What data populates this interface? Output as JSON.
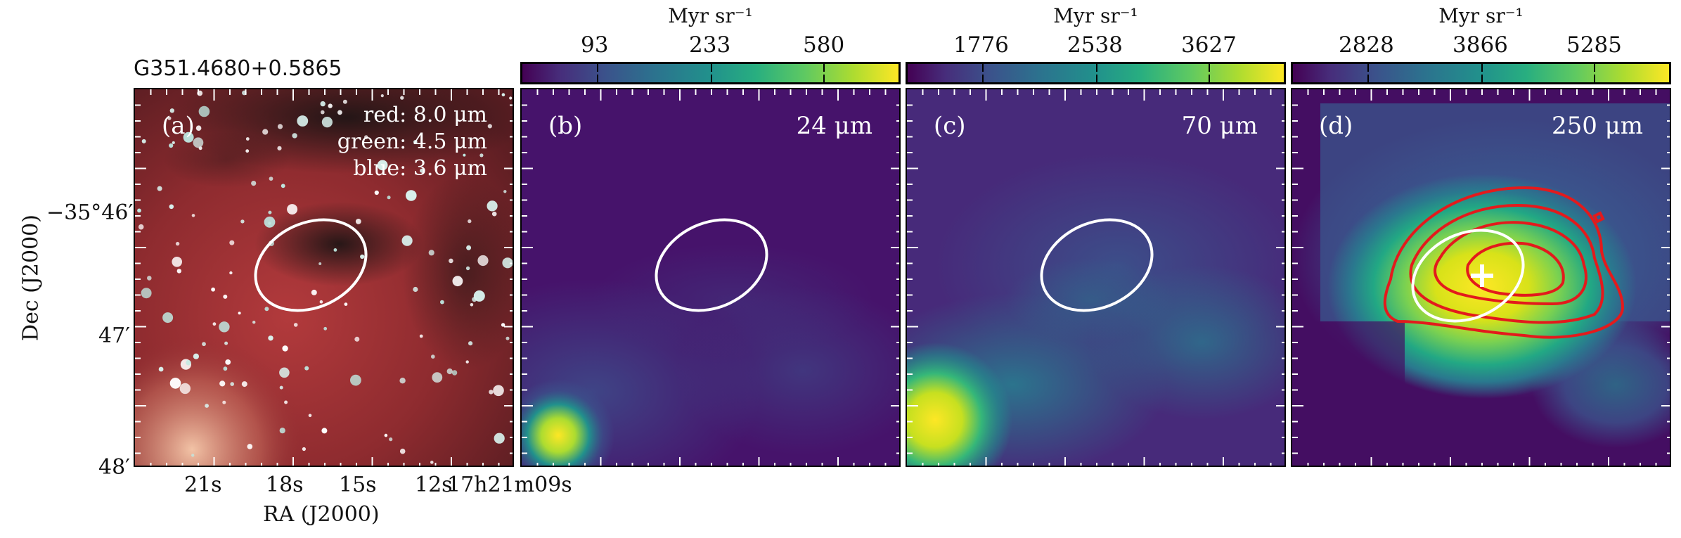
{
  "figure": {
    "source_name": "G351.4680+0.5865",
    "ra_axis_title": "RA (J2000)",
    "dec_axis_title": "Dec (J2000)",
    "ra_tick_labels": [
      "21s",
      "18s",
      "15s",
      "12s",
      "17h21m09s"
    ],
    "dec_tick_labels": [
      "−35°46′",
      "47′",
      "48′"
    ],
    "colorbar_unit": "Myr sr⁻¹"
  },
  "panels": [
    {
      "label": "(a)",
      "legend": [
        "red: 8.0 μm",
        "green: 4.5 μm",
        "blue: 3.6 μm"
      ],
      "image_kind": "three-color composite"
    },
    {
      "label": "(b)",
      "wavelength": "24 μm",
      "colorbar_ticks": [
        "93",
        "233",
        "580"
      ],
      "colormap": "viridis"
    },
    {
      "label": "(c)",
      "wavelength": "70 μm",
      "colorbar_ticks": [
        "1776",
        "2538",
        "3627"
      ],
      "colormap": "viridis"
    },
    {
      "label": "(d)",
      "wavelength": "250 μm",
      "colorbar_ticks": [
        "2828",
        "3866",
        "5285"
      ],
      "colormap": "viridis",
      "overlays": [
        "red contours",
        "white cross"
      ]
    }
  ],
  "overlays": {
    "ellipse_color": "#ffffff",
    "contour_color": "#e31a1c",
    "cross_color": "#ffffff"
  }
}
